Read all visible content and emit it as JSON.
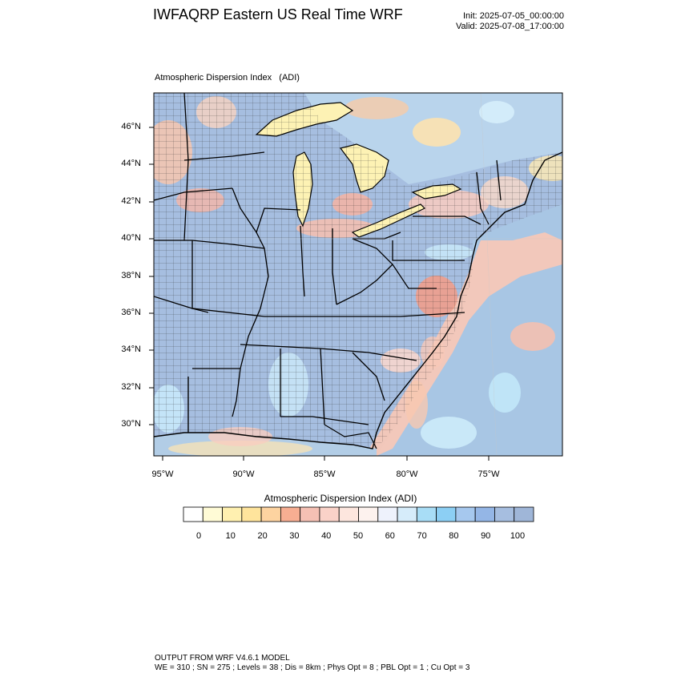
{
  "header": {
    "title": "IWFAQRP Eastern US Real Time WRF",
    "init": "Init: 2025-07-05_00:00:00",
    "valid": "Valid: 2025-07-08_17:00:00"
  },
  "map": {
    "subtitle": "Atmospheric Dispersion Index   (ADI)",
    "lat_labels": [
      "46°N",
      "44°N",
      "42°N",
      "40°N",
      "38°N",
      "36°N",
      "34°N",
      "32°N",
      "30°N"
    ],
    "lon_labels": [
      "95°W",
      "90°W",
      "85°W",
      "80°W",
      "75°W"
    ]
  },
  "legend": {
    "title": "Atmospheric Dispersion Index  (ADI)",
    "colors": [
      "#ffffff",
      "#fffbd6",
      "#fff0b0",
      "#ffe49c",
      "#fdd3a0",
      "#f7ae92",
      "#f5c0b4",
      "#fad2c8",
      "#fde6de",
      "#fdf2ee",
      "#eef2fc",
      "#d6ecfa",
      "#a8ddf6",
      "#8ccff4",
      "#a6c8ee",
      "#94b6e6",
      "#a6bee0",
      "#9fb6d8"
    ],
    "tick_labels": [
      "0",
      "10",
      "20",
      "30",
      "40",
      "50",
      "60",
      "70",
      "80",
      "90",
      "100"
    ]
  },
  "footer": {
    "line1": "OUTPUT FROM WRF V4.6.1 MODEL",
    "line2": "WE = 310 ; SN = 275 ; Levels = 38 ; Dis = 8km ; Phys Opt = 8 ; PBL Opt = 1 ; Cu Opt = 3"
  }
}
